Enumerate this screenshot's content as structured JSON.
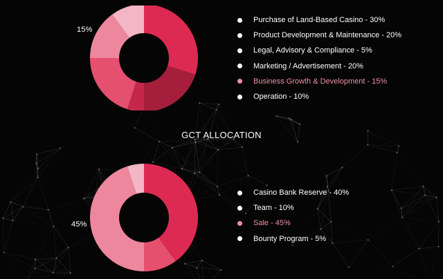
{
  "colors": {
    "background": "#050505",
    "text": "#ffffff",
    "highlight": "#f08fa6",
    "dot": "#ffffff"
  },
  "section_title": "GCT ALLOCATION",
  "chart_data": [
    {
      "type": "pie",
      "donut": true,
      "callout": "15%",
      "slices": [
        {
          "label": "Purchase of Land-Based Casino - 30%",
          "value": 30,
          "color": "#dd2a52",
          "highlight": false
        },
        {
          "label": "Product Development & Maintenance - 20%",
          "value": 20,
          "color": "#a51f3d",
          "highlight": false
        },
        {
          "label": "Legal, Advisory & Compliance - 5%",
          "value": 5,
          "color": "#c4274b",
          "highlight": false
        },
        {
          "label": "Marketing / Advertisement - 20%",
          "value": 20,
          "color": "#e5506f",
          "highlight": false
        },
        {
          "label": "Business Growth & Development - 15%",
          "value": 15,
          "color": "#ec879e",
          "highlight": true
        },
        {
          "label": "Operation - 10%",
          "value": 10,
          "color": "#f3b6c4",
          "highlight": false
        }
      ]
    },
    {
      "type": "pie",
      "donut": true,
      "callout": "45%",
      "slices": [
        {
          "label": "Casino Bank Reserve - 40%",
          "value": 40,
          "color": "#dd2a52",
          "highlight": false
        },
        {
          "label": "Team - 10%",
          "value": 10,
          "color": "#e5506f",
          "highlight": false
        },
        {
          "label": "Sale - 45%",
          "value": 45,
          "color": "#ec879e",
          "highlight": true
        },
        {
          "label": "Bounty Program - 5%",
          "value": 5,
          "color": "#f3b6c4",
          "highlight": false
        }
      ]
    }
  ]
}
